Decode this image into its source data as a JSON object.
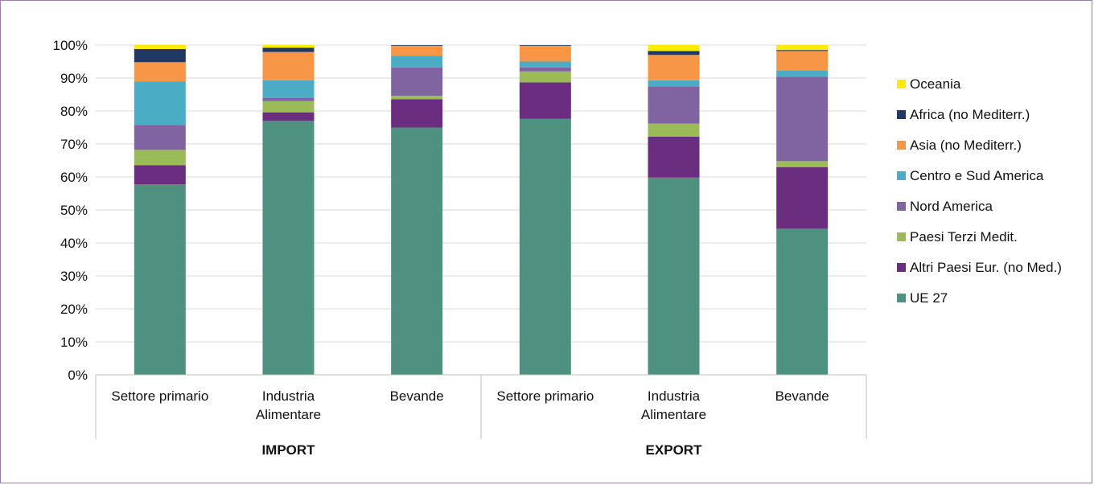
{
  "chart_data": {
    "type": "bar",
    "stacked": true,
    "groups": [
      {
        "label": "IMPORT",
        "categories": [
          "Settore primario",
          "Industria\nAlimentare",
          "Bevande"
        ]
      },
      {
        "label": "EXPORT",
        "categories": [
          "Settore primario",
          "Industria\nAlimentare",
          "Bevande"
        ]
      }
    ],
    "y_ticks": [
      "0%",
      "10%",
      "20%",
      "30%",
      "40%",
      "50%",
      "60%",
      "70%",
      "80%",
      "90%",
      "100%"
    ],
    "ylim": [
      0,
      100
    ],
    "grid": true,
    "legend_position": "right",
    "series": [
      {
        "name": "UE 27",
        "color": "#4f9180",
        "values": [
          57.8,
          77,
          75,
          77.6,
          59.8,
          44.3
        ]
      },
      {
        "name": "Altri Paesi Eur. (no Med.)",
        "color": "#6b2d80",
        "values": [
          5.8,
          2.6,
          8.6,
          11.1,
          12.4,
          18.7
        ]
      },
      {
        "name": "Paesi Terzi  Medit.",
        "color": "#9bbb59",
        "values": [
          4.6,
          3.4,
          1.0,
          3.3,
          4.0,
          1.8
        ]
      },
      {
        "name": "Nord America",
        "color": "#8064a2",
        "values": [
          7.6,
          1.0,
          8.6,
          1.2,
          11.3,
          25.6
        ]
      },
      {
        "name": "Centro e Sud America",
        "color": "#4bacc6",
        "values": [
          13.2,
          5.3,
          3.6,
          1.8,
          1.8,
          1.8
        ]
      },
      {
        "name": "Asia (no Mediterr.)",
        "color": "#f79646",
        "values": [
          5.8,
          8.6,
          3.0,
          4.8,
          7.7,
          6.0
        ]
      },
      {
        "name": "Africa (no Mediterr.)",
        "color": "#1f3864",
        "values": [
          4.0,
          1.3,
          0.2,
          0.2,
          1.2,
          0.3
        ]
      },
      {
        "name": "Oceania",
        "color": "#ffeb00",
        "values": [
          1.2,
          0.8,
          0.0,
          0.0,
          1.8,
          1.5
        ]
      }
    ]
  }
}
